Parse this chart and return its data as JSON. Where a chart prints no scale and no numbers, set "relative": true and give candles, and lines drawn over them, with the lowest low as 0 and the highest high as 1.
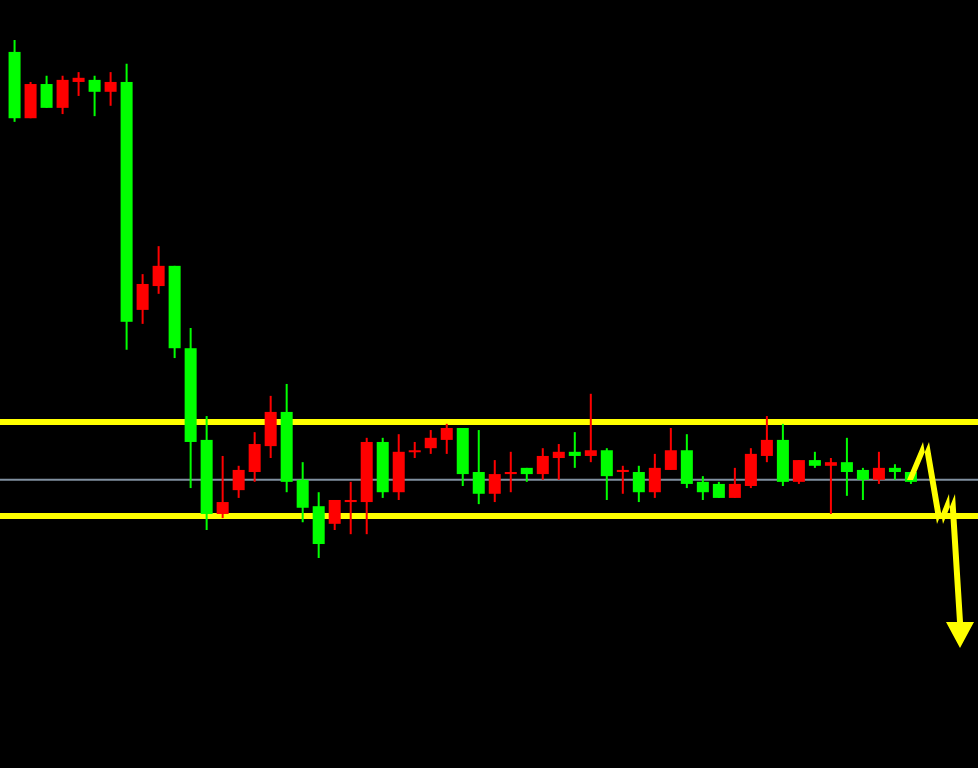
{
  "chart_data": {
    "type": "candlestick",
    "relative": true,
    "categories": [
      null,
      null,
      null,
      null,
      null,
      null,
      null,
      null,
      null,
      null,
      null,
      null,
      null,
      null,
      null,
      null,
      null,
      null,
      null,
      null,
      null,
      null,
      null,
      null,
      null,
      null,
      null,
      null,
      null,
      null,
      null,
      null,
      null,
      null,
      null,
      null,
      null,
      null,
      null,
      null,
      null,
      null,
      null,
      null,
      null,
      null,
      null,
      null,
      null,
      null,
      null,
      null,
      null,
      null,
      null,
      null,
      null
    ],
    "ohlc": [
      [
        0.977,
        1.0,
        0.842,
        0.849
      ],
      [
        0.849,
        0.919,
        0.849,
        0.915
      ],
      [
        0.915,
        0.931,
        0.869,
        0.869
      ],
      [
        0.869,
        0.931,
        0.857,
        0.923
      ],
      [
        0.919,
        0.938,
        0.892,
        0.927
      ],
      [
        0.923,
        0.931,
        0.853,
        0.9
      ],
      [
        0.9,
        0.938,
        0.873,
        0.919
      ],
      [
        0.919,
        0.954,
        0.402,
        0.456
      ],
      [
        0.479,
        0.548,
        0.452,
        0.529
      ],
      [
        0.525,
        0.602,
        0.51,
        0.564
      ],
      [
        0.564,
        0.564,
        0.386,
        0.405
      ],
      [
        0.405,
        0.444,
        0.135,
        0.224
      ],
      [
        0.228,
        0.274,
        0.054,
        0.085
      ],
      [
        0.085,
        0.197,
        0.077,
        0.108
      ],
      [
        0.131,
        0.178,
        0.116,
        0.17
      ],
      [
        0.166,
        0.243,
        0.147,
        0.22
      ],
      [
        0.216,
        0.313,
        0.193,
        0.282
      ],
      [
        0.282,
        0.336,
        0.127,
        0.147
      ],
      [
        0.151,
        0.185,
        0.069,
        0.097
      ],
      [
        0.1,
        0.127,
        0,
        0.027
      ],
      [
        0.066,
        0.112,
        0.054,
        0.112
      ],
      [
        0.108,
        0.147,
        0.046,
        0.112
      ],
      [
        0.108,
        0.232,
        0.046,
        0.224
      ],
      [
        0.224,
        0.232,
        0.116,
        0.127
      ],
      [
        0.127,
        0.239,
        0.112,
        0.205
      ],
      [
        0.205,
        0.224,
        0.193,
        0.208
      ],
      [
        0.212,
        0.247,
        0.201,
        0.232
      ],
      [
        0.228,
        0.259,
        0.201,
        0.251
      ],
      [
        0.251,
        0.251,
        0.139,
        0.162
      ],
      [
        0.166,
        0.247,
        0.104,
        0.124
      ],
      [
        0.124,
        0.189,
        0.108,
        0.162
      ],
      [
        0.162,
        0.205,
        0.127,
        0.166
      ],
      [
        0.174,
        0.174,
        0.147,
        0.162
      ],
      [
        0.162,
        0.212,
        0.151,
        0.197
      ],
      [
        0.193,
        0.22,
        0.151,
        0.205
      ],
      [
        0.205,
        0.243,
        0.174,
        0.197
      ],
      [
        0.197,
        0.317,
        0.185,
        0.208
      ],
      [
        0.208,
        0.212,
        0.112,
        0.158
      ],
      [
        0.166,
        0.178,
        0.124,
        0.17
      ],
      [
        0.166,
        0.178,
        0.108,
        0.127
      ],
      [
        0.127,
        0.201,
        0.116,
        0.174
      ],
      [
        0.17,
        0.251,
        0.17,
        0.208
      ],
      [
        0.208,
        0.239,
        0.135,
        0.143
      ],
      [
        0.147,
        0.158,
        0.112,
        0.127
      ],
      [
        0.143,
        0.147,
        0.116,
        0.116
      ],
      [
        0.116,
        0.174,
        0.116,
        0.143
      ],
      [
        0.139,
        0.212,
        0.135,
        0.201
      ],
      [
        0.197,
        0.274,
        0.185,
        0.228
      ],
      [
        0.228,
        0.259,
        0.139,
        0.147
      ],
      [
        0.147,
        0.189,
        0.143,
        0.189
      ],
      [
        0.189,
        0.205,
        0.174,
        0.178
      ],
      [
        0.178,
        0.193,
        0.085,
        0.185
      ],
      [
        0.185,
        0.232,
        0.12,
        0.166
      ],
      [
        0.17,
        0.174,
        0.112,
        0.151
      ],
      [
        0.151,
        0.205,
        0.143,
        0.174
      ],
      [
        0.174,
        0.181,
        0.151,
        0.166
      ],
      [
        0.166,
        0.166,
        0.143,
        0.147
      ]
    ],
    "colors": [
      "#00ff00",
      "#ff0000",
      "#00ff00",
      "#ff0000",
      "#ff0000",
      "#00ff00",
      "#ff0000",
      "#00ff00",
      "#ff0000",
      "#ff0000",
      "#00ff00",
      "#00ff00",
      "#00ff00",
      "#ff0000",
      "#ff0000",
      "#ff0000",
      "#ff0000",
      "#00ff00",
      "#00ff00",
      "#00ff00",
      "#ff0000",
      "#ff0000",
      "#ff0000",
      "#00ff00",
      "#ff0000",
      "#ff0000",
      "#ff0000",
      "#ff0000",
      "#00ff00",
      "#00ff00",
      "#ff0000",
      "#ff0000",
      "#00ff00",
      "#ff0000",
      "#ff0000",
      "#00ff00",
      "#ff0000",
      "#00ff00",
      "#ff0000",
      "#00ff00",
      "#ff0000",
      "#ff0000",
      "#00ff00",
      "#00ff00",
      "#00ff00",
      "#ff0000",
      "#ff0000",
      "#ff0000",
      "#00ff00",
      "#ff0000",
      "#00ff00",
      "#ff0000",
      "#00ff00",
      "#00ff00",
      "#ff0000",
      "#00ff00",
      "#00ff00"
    ],
    "ref_lines": [
      {
        "axis": "y",
        "value": 0.151,
        "color": "#8090a0"
      },
      {
        "axis": "y",
        "value": 0.2625,
        "color": "#ffff00"
      },
      {
        "axis": "y",
        "value": 0.081,
        "color": "#ffff00"
      }
    ]
  }
}
